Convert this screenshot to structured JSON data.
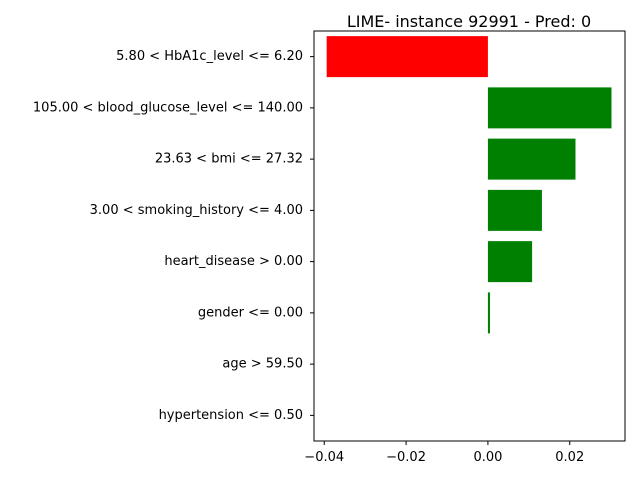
{
  "chart_data": {
    "type": "bar",
    "orientation": "horizontal",
    "title": "LIME- instance 92991 - Pred: 0",
    "xlabel": "",
    "ylabel": "",
    "categories": [
      "5.80 < HbA1c_level <= 6.20",
      "105.00 < blood_glucose_level <= 140.00",
      "23.63 < bmi <= 27.32",
      "3.00 < smoking_history <= 4.00",
      "heart_disease > 0.00",
      "gender <= 0.00",
      "age > 59.50",
      "hypertension <= 0.50"
    ],
    "values": [
      -0.0394,
      0.0302,
      0.0214,
      0.0132,
      0.0108,
      0.0005,
      0.0,
      0.0
    ],
    "xlim": [
      -0.0425,
      0.0335
    ],
    "xticks": [
      -0.04,
      -0.02,
      0.0,
      0.02
    ],
    "xtick_labels": [
      "−0.04",
      "−0.02",
      "0.00",
      "0.02"
    ],
    "grid": false,
    "colors": {
      "positive": "#008000",
      "negative": "#ff0000",
      "text": "#000000",
      "axis": "#000000"
    }
  }
}
